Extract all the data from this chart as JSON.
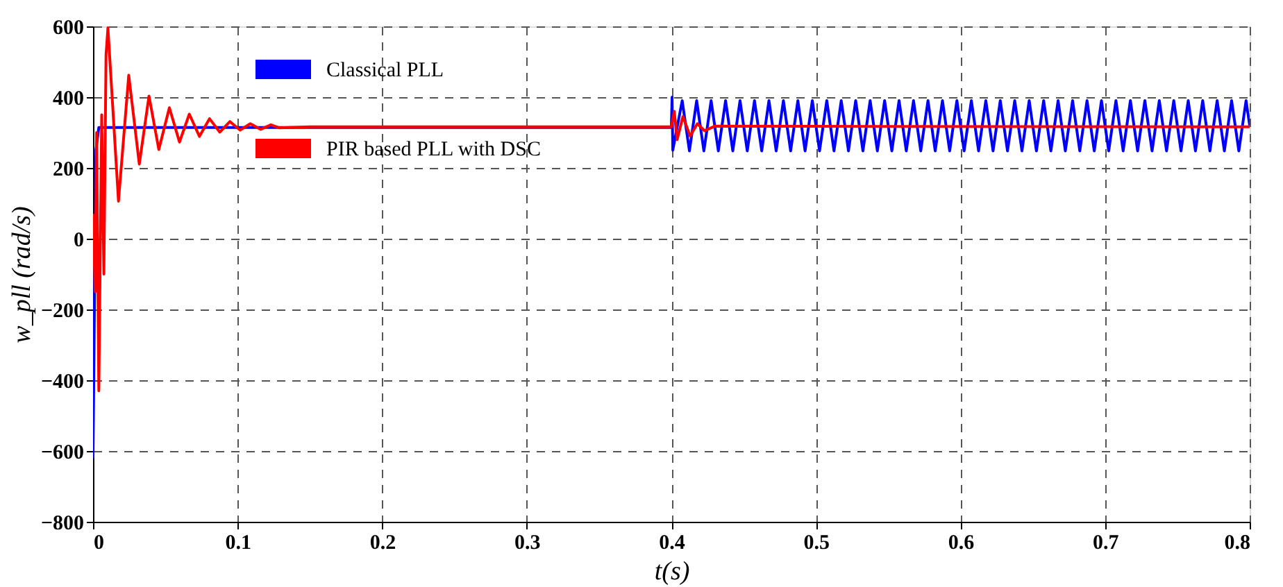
{
  "chart_data": {
    "type": "line",
    "xlabel": "t(s)",
    "ylabel": "w_pll (rad/s)",
    "xlim": [
      0,
      0.8
    ],
    "xticks": [
      0,
      0.1,
      0.2,
      0.3,
      0.4,
      0.5,
      0.6,
      0.7,
      0.8
    ],
    "ylim": [
      -800,
      600
    ],
    "yticks": [
      -800,
      -600,
      -400,
      -200,
      0,
      200,
      400,
      600
    ],
    "grid": true,
    "legend": "top left",
    "line_style": "solid",
    "marker": "none",
    "series": [
      {
        "name": "Classical PLL",
        "color": "#0000ff",
        "x": [
          0,
          0.002,
          0.004,
          0.4,
          0.4005,
          0.401,
          0.4075,
          0.4125,
          0.4175,
          0.4225,
          0.4275,
          0.4325,
          0.4375,
          0.4425,
          0.4475,
          0.4525,
          0.4575,
          0.4625,
          0.4675,
          0.4725,
          0.4775,
          0.4825,
          0.4875,
          0.4925,
          0.4975,
          0.5025,
          0.5075,
          0.5125,
          0.5175,
          0.5225,
          0.5275,
          0.5325,
          0.5375,
          0.5425,
          0.5475,
          0.5525,
          0.5575,
          0.5625,
          0.5675,
          0.5725,
          0.5775,
          0.5825,
          0.5875,
          0.5925,
          0.5975,
          0.6025,
          0.6075,
          0.6125,
          0.6175,
          0.6225,
          0.6275,
          0.6325,
          0.6375,
          0.6425,
          0.6475,
          0.6525,
          0.6575,
          0.6625,
          0.6675,
          0.6725,
          0.6775,
          0.6825,
          0.6875,
          0.6925,
          0.6975,
          0.7025,
          0.7075,
          0.7125,
          0.7175,
          0.7225,
          0.7275,
          0.7325,
          0.7375,
          0.7425,
          0.7475,
          0.7525,
          0.7575,
          0.7625,
          0.7675,
          0.7725,
          0.7775,
          0.7825,
          0.7875,
          0.7925,
          0.7975,
          0.8
        ],
        "values": [
          -620,
          250,
          314,
          314,
          400,
          250,
          390,
          248,
          390,
          248,
          390,
          248,
          390,
          248,
          390,
          248,
          390,
          248,
          390,
          248,
          390,
          248,
          390,
          248,
          390,
          248,
          390,
          248,
          390,
          248,
          390,
          248,
          390,
          248,
          390,
          248,
          390,
          248,
          390,
          248,
          390,
          248,
          390,
          248,
          390,
          248,
          390,
          248,
          390,
          248,
          390,
          248,
          390,
          248,
          390,
          248,
          390,
          248,
          390,
          248,
          390,
          248,
          390,
          248,
          390,
          248,
          390,
          248,
          390,
          248,
          390,
          248,
          390,
          248,
          390,
          248,
          390,
          248,
          390,
          248,
          390,
          248,
          390,
          248,
          390,
          320
        ]
      },
      {
        "name": "PIR based PLL with DSC",
        "color": "#ff0000",
        "x": [
          0,
          0.0015,
          0.0025,
          0.004,
          0.006,
          0.0075,
          0.009,
          0.0103,
          0.0176,
          0.0247,
          0.032,
          0.0387,
          0.0455,
          0.0528,
          0.0598,
          0.0666,
          0.0736,
          0.0806,
          0.0877,
          0.0947,
          0.1017,
          0.1088,
          0.116,
          0.123,
          0.129,
          0.15,
          0.4,
          0.402,
          0.404,
          0.408,
          0.413,
          0.418,
          0.423,
          0.43,
          0.8
        ],
        "values": [
          70,
          -150,
          300,
          -430,
          350,
          -100,
          520,
          596,
          106,
          462,
          211,
          403,
          252,
          370,
          273,
          352,
          289,
          339,
          301,
          331,
          307,
          325,
          309,
          322,
          313,
          316,
          316,
          360,
          280,
          345,
          290,
          325,
          305,
          318,
          316
        ]
      }
    ]
  }
}
